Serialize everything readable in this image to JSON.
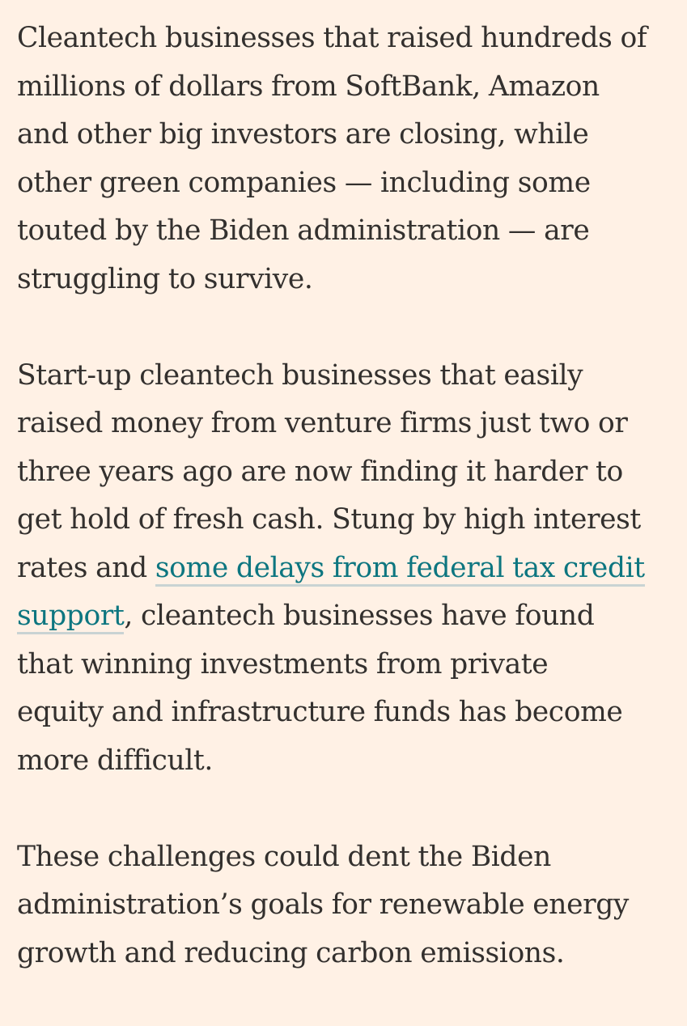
{
  "article": {
    "paragraph_1": [
      "Cleantech businesses that raised hundreds of",
      "millions of dollars from SoftBank, Amazon",
      "and other big investors are closing, while",
      "other green companies — including some",
      "touted by the Biden administration — are",
      "struggling to survive."
    ],
    "paragraph_2": {
      "lines_before": [
        "Start-up cleantech businesses that easily",
        "raised money from venture firms just two or",
        "three years ago are now finding it harder to",
        "get hold of fresh cash. Stung by high interest"
      ],
      "link_line_prefix": "rates and ",
      "link_text_part1": "some delays from federal tax credit",
      "link_text_part2": "support",
      "link_line_suffix": ", cleantech businesses have found",
      "lines_after": [
        "that winning investments from private",
        "equity and infrastructure funds has become",
        "more difficult."
      ]
    },
    "paragraph_3": [
      "These challenges could dent the Biden",
      "administration’s goals for renewable energy",
      "growth and reducing carbon emissions."
    ]
  },
  "colors": {
    "background": "#fff1e5",
    "text": "#33302e",
    "link": "#0d7680"
  }
}
